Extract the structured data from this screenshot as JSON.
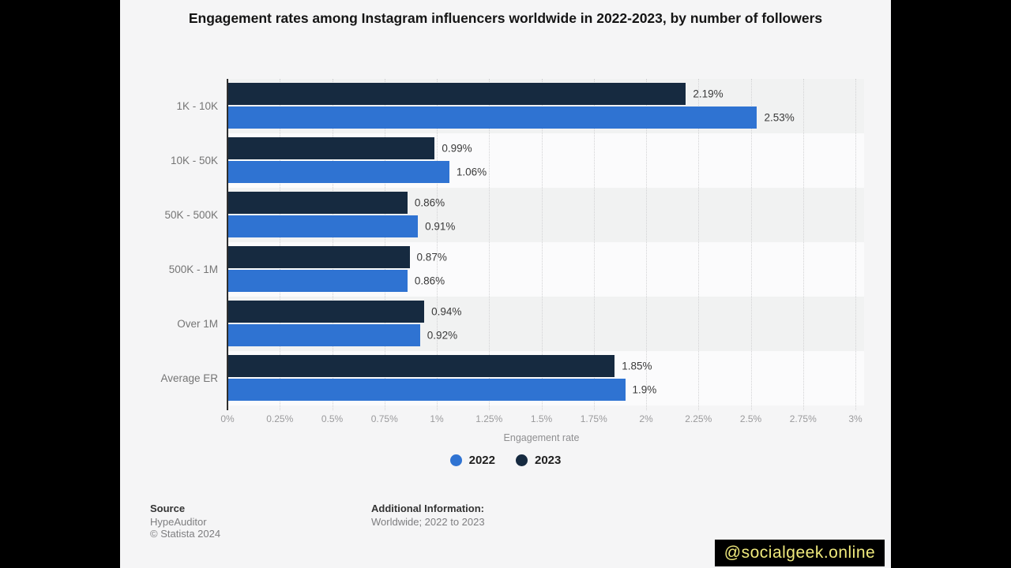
{
  "title": "Engagement rates among Instagram influencers worldwide in 2022-2023, by number of followers",
  "chart_data": {
    "type": "bar",
    "orientation": "horizontal",
    "categories": [
      "1K - 10K",
      "10K - 50K",
      "50K - 500K",
      "500K - 1M",
      "Over 1M",
      "Average ER"
    ],
    "series": [
      {
        "name": "2023",
        "color": "#162a40",
        "values": [
          2.19,
          0.99,
          0.86,
          0.87,
          0.94,
          1.85
        ],
        "labels": [
          "2.19%",
          "0.99%",
          "0.86%",
          "0.87%",
          "0.94%",
          "1.85%"
        ]
      },
      {
        "name": "2022",
        "color": "#2f73d2",
        "values": [
          2.53,
          1.06,
          0.91,
          0.86,
          0.92,
          1.9
        ],
        "labels": [
          "2.53%",
          "1.06%",
          "0.91%",
          "0.86%",
          "0.92%",
          "1.9%"
        ]
      }
    ],
    "bar_order": "2023 on top of 2022 within each category pair",
    "xlabel": "Engagement rate",
    "x_ticks": [
      "0%",
      "0.25%",
      "0.5%",
      "0.75%",
      "1%",
      "1.25%",
      "1.5%",
      "1.75%",
      "2%",
      "2.25%",
      "2.5%",
      "2.75%",
      "3%"
    ],
    "xlim": [
      0,
      3
    ],
    "grid": "vertical dotted gridlines at each tick",
    "legend_position": "bottom-center"
  },
  "legend": [
    {
      "label": "2022",
      "color": "#2f73d2"
    },
    {
      "label": "2023",
      "color": "#162a40"
    }
  ],
  "footer": {
    "source_heading": "Source",
    "source_lines": [
      "HypeAuditor",
      "© Statista 2024"
    ],
    "additional_heading": "Additional Information:",
    "additional_lines": [
      "Worldwide; 2022 to 2023"
    ]
  },
  "watermark": {
    "text": "@socialgeek.online",
    "bg_color": "#000000",
    "text_color": "#efe97c"
  },
  "colors": {
    "page_letterbox": "#000000",
    "chart_background": "#f5f5f6",
    "axis_line": "#2e2e2e",
    "gridline": "#d2d2d4",
    "category_label": "#757575",
    "value_label": "#3a3a3a",
    "tick_label": "#9a9a9c",
    "title_text": "#151515"
  }
}
